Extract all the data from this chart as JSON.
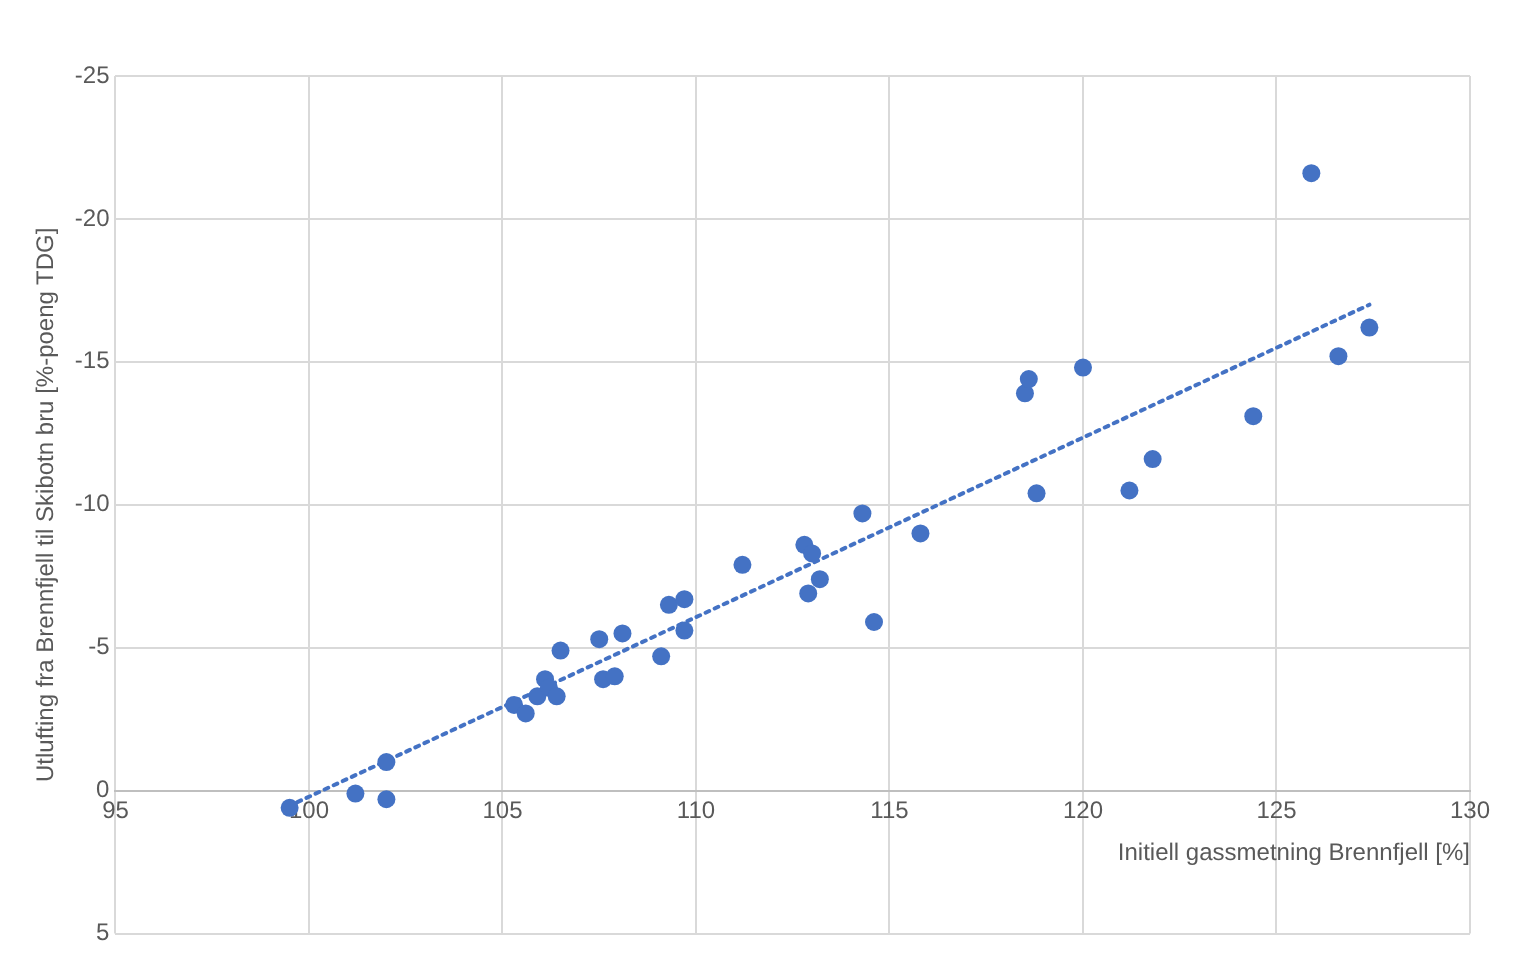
{
  "chart_data": {
    "type": "scatter",
    "xlabel": "Initiell gassmetning Brennfjell [%]",
    "ylabel": "Utlufting fra Brennfjell til Skibotn bru [%-poeng TDG]",
    "xlim": [
      95,
      130
    ],
    "xticks": [
      95,
      100,
      105,
      110,
      115,
      120,
      125,
      130
    ],
    "ylim": [
      5,
      -25
    ],
    "yticks": [
      5,
      0,
      -5,
      -10,
      -15,
      -20,
      -25
    ],
    "grid": true,
    "legend": false,
    "marker": "circle",
    "series": [
      {
        "color": "#4472c4",
        "x": [
          99.5,
          101.2,
          102.0,
          102.0,
          105.3,
          105.6,
          105.9,
          106.1,
          106.2,
          106.4,
          106.5,
          107.5,
          107.6,
          107.9,
          108.1,
          109.1,
          109.3,
          109.7,
          109.7,
          111.2,
          112.8,
          113.0,
          112.9,
          113.2,
          114.3,
          114.6,
          115.8,
          118.5,
          118.6,
          120.0,
          118.8,
          121.1,
          121.2,
          121.8,
          124.4,
          125.9,
          126.6,
          127.4
        ],
        "values": [
          0.6,
          0.1,
          -1.0,
          0.3,
          -3.0,
          -2.7,
          -3.3,
          -3.9,
          -3.6,
          -3.3,
          -4.9,
          -5.3,
          -3.9,
          -4.0,
          -5.5,
          -4.7,
          -6.5,
          -6.7,
          -5.6,
          -7.9,
          -8.6,
          -8.3,
          -6.9,
          -7.4,
          -9.7,
          -5.9,
          -9.0,
          -13.9,
          -14.4,
          -14.8,
          -10.4,
          null,
          -10.5,
          -11.6,
          -13.1,
          -21.6,
          -15.2,
          -16.2
        ]
      },
      {
        "type": "line",
        "color": "#4472c4",
        "line_style": "dotted",
        "marker": "none",
        "x": [
          99.7,
          127.4
        ],
        "values": [
          0.4,
          -17.0
        ]
      }
    ]
  }
}
